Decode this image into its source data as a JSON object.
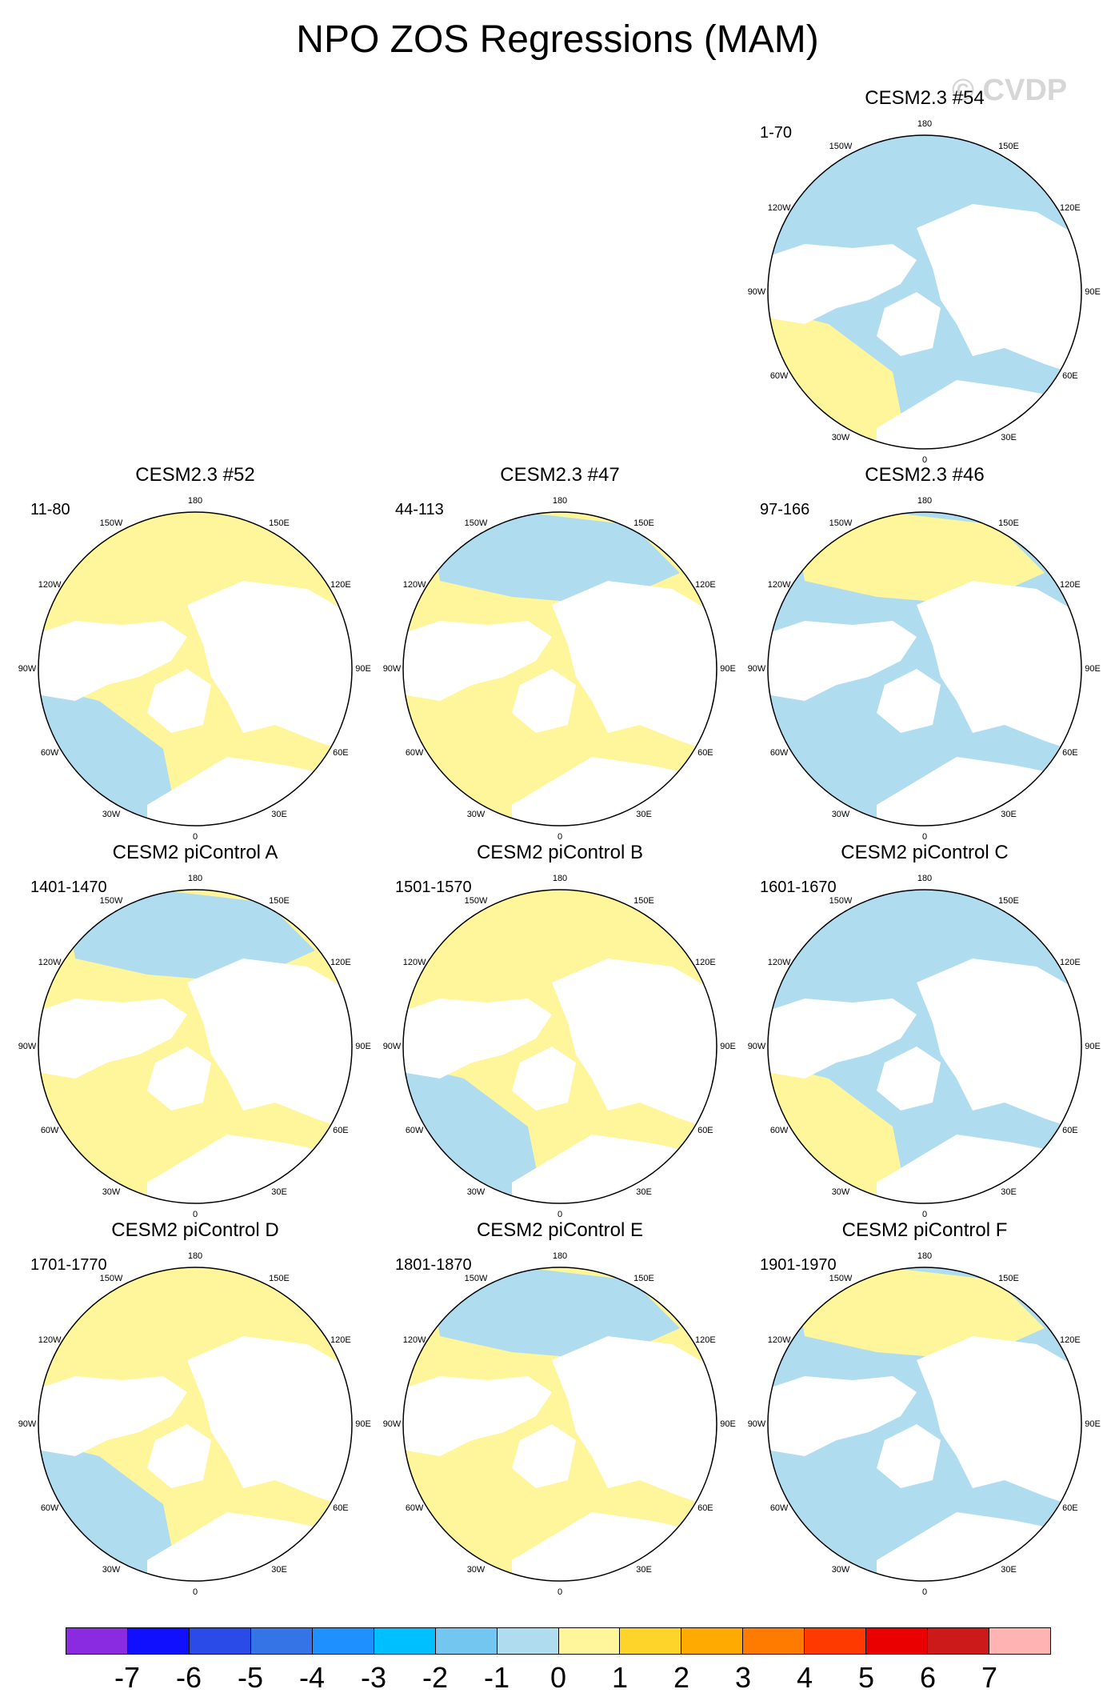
{
  "title": "NPO ZOS Regressions (MAM)",
  "watermark": "© CVDP",
  "longitude_labels": [
    "180",
    "150E",
    "120E",
    "90E",
    "60E",
    "30E",
    "0",
    "30W",
    "60W",
    "90W",
    "120W",
    "150W"
  ],
  "panels": [
    {
      "row": 0,
      "col": 2,
      "title": "CESM2.3 #54",
      "period": "1-70"
    },
    {
      "row": 1,
      "col": 0,
      "title": "CESM2.3 #52",
      "period": "11-80"
    },
    {
      "row": 1,
      "col": 1,
      "title": "CESM2.3 #47",
      "period": "44-113"
    },
    {
      "row": 1,
      "col": 2,
      "title": "CESM2.3 #46",
      "period": "97-166"
    },
    {
      "row": 2,
      "col": 0,
      "title": "CESM2 piControl A",
      "period": "1401-1470"
    },
    {
      "row": 2,
      "col": 1,
      "title": "CESM2 piControl B",
      "period": "1501-1570"
    },
    {
      "row": 2,
      "col": 2,
      "title": "CESM2 piControl C",
      "period": "1601-1670"
    },
    {
      "row": 3,
      "col": 0,
      "title": "CESM2 piControl D",
      "period": "1701-1770"
    },
    {
      "row": 3,
      "col": 1,
      "title": "CESM2 piControl E",
      "period": "1801-1870"
    },
    {
      "row": 3,
      "col": 2,
      "title": "CESM2 piControl F",
      "period": "1901-1970"
    }
  ],
  "colorbar": {
    "labels": [
      "-7",
      "-6",
      "-5",
      "-4",
      "-3",
      "-2",
      "-1",
      "0",
      "1",
      "2",
      "3",
      "4",
      "5",
      "6",
      "7"
    ],
    "colors": [
      "#8a2be2",
      "#1010ff",
      "#2a4be8",
      "#3574e6",
      "#1e90ff",
      "#00bfff",
      "#72c6f0",
      "#b0dcf0",
      "#fff59a",
      "#ffd42a",
      "#ffaa00",
      "#ff7b00",
      "#ff3a00",
      "#ea0000",
      "#cc1a1a",
      "#ffb3b3"
    ]
  },
  "colors": {
    "ocean_positive": "#fff59a",
    "ocean_negative": "#b0dcf0",
    "land": "#ffffff"
  }
}
